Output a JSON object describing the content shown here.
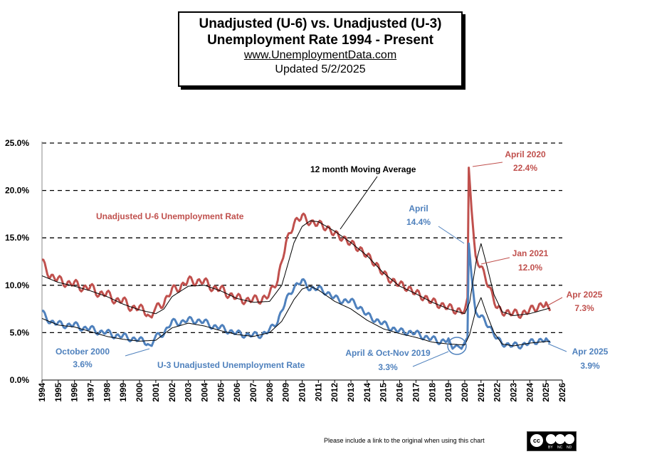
{
  "title": {
    "line1": "Unadjusted (U-6) vs. Unadjusted (U-3)",
    "line2": "Unemployment Rate 1994 - Present",
    "url": "www.UnemploymentData.com",
    "updated": "Updated 5/2/2025"
  },
  "footer": "Please include a link to the original when using this chart",
  "cc_badge": {
    "cc": "cc",
    "labels": [
      "BY",
      "NC",
      "ND"
    ]
  },
  "colors": {
    "u6": "#c0504d",
    "u3": "#4f81bd",
    "ma": "#000000",
    "grid": "#000000"
  },
  "annotations": {
    "u6_label": "Unadjusted U-6 Unemployment Rate",
    "u3_label": "U-3  Unadjusted Unemployment Rate",
    "ma_label": "12 month Moving Average",
    "u6_peak": [
      "April 2020",
      "22.4%"
    ],
    "u6_jan21": [
      "Jan 2021",
      "12.0%"
    ],
    "u6_apr25": [
      "Apr 2025",
      "7.3%"
    ],
    "u3_peak": [
      "April",
      "14.4%"
    ],
    "u3_oct2000": [
      "October 2000",
      "3.6%"
    ],
    "u3_low2019": [
      "April & Oct-Nov  2019",
      "3.3%"
    ],
    "u3_apr25": [
      "Apr 2025",
      "3.9%"
    ]
  },
  "chart_data": {
    "type": "line",
    "x_range": [
      1994,
      2026
    ],
    "ylim": [
      0,
      25
    ],
    "y_ticks": [
      "0.0%",
      "5.0%",
      "10.0%",
      "15.0%",
      "20.0%",
      "25.0%"
    ],
    "x_ticks": [
      "1994",
      "1995",
      "1996",
      "1997",
      "1998",
      "1999",
      "2000",
      "2001",
      "2002",
      "2003",
      "2004",
      "2005",
      "2006",
      "2007",
      "2008",
      "2009",
      "2010",
      "2011",
      "2012",
      "2013",
      "2014",
      "2015",
      "2016",
      "2017",
      "2018",
      "2019",
      "2020",
      "2021",
      "2022",
      "2023",
      "2024",
      "2025",
      "2026"
    ],
    "grid": "horizontal dashed",
    "series": [
      {
        "name": "Unadjusted U-6 Unemployment Rate",
        "points": [
          [
            1994.0,
            12.7
          ],
          [
            1994.5,
            10.8
          ],
          [
            1995.0,
            10.8
          ],
          [
            1995.5,
            10.0
          ],
          [
            1996.0,
            10.4
          ],
          [
            1996.5,
            9.5
          ],
          [
            1997.0,
            10.0
          ],
          [
            1997.5,
            8.9
          ],
          [
            1998.0,
            9.3
          ],
          [
            1998.5,
            8.2
          ],
          [
            1999.0,
            8.6
          ],
          [
            1999.5,
            7.4
          ],
          [
            2000.0,
            7.8
          ],
          [
            2000.5,
            6.9
          ],
          [
            2000.75,
            6.6
          ],
          [
            2001.0,
            7.7
          ],
          [
            2001.5,
            8.0
          ],
          [
            2002.0,
            9.7
          ],
          [
            2002.5,
            9.6
          ],
          [
            2003.0,
            10.7
          ],
          [
            2003.5,
            10.2
          ],
          [
            2004.0,
            10.6
          ],
          [
            2004.5,
            9.5
          ],
          [
            2005.0,
            9.8
          ],
          [
            2005.5,
            8.8
          ],
          [
            2006.0,
            8.9
          ],
          [
            2006.5,
            8.2
          ],
          [
            2007.0,
            8.7
          ],
          [
            2007.5,
            8.3
          ],
          [
            2008.0,
            9.2
          ],
          [
            2008.5,
            10.5
          ],
          [
            2009.0,
            14.5
          ],
          [
            2009.5,
            16.5
          ],
          [
            2010.0,
            17.4
          ],
          [
            2010.5,
            16.5
          ],
          [
            2011.0,
            16.6
          ],
          [
            2011.5,
            16.0
          ],
          [
            2012.0,
            15.5
          ],
          [
            2012.5,
            14.9
          ],
          [
            2013.0,
            14.5
          ],
          [
            2013.5,
            13.8
          ],
          [
            2014.0,
            13.2
          ],
          [
            2014.5,
            12.2
          ],
          [
            2015.0,
            11.3
          ],
          [
            2015.5,
            10.4
          ],
          [
            2016.0,
            10.2
          ],
          [
            2016.5,
            9.6
          ],
          [
            2017.0,
            9.3
          ],
          [
            2017.5,
            8.6
          ],
          [
            2018.0,
            8.4
          ],
          [
            2018.5,
            7.8
          ],
          [
            2019.0,
            7.8
          ],
          [
            2019.5,
            7.2
          ],
          [
            2020.0,
            7.4
          ],
          [
            2020.17,
            8.7
          ],
          [
            2020.25,
            22.4
          ],
          [
            2020.42,
            18.0
          ],
          [
            2020.67,
            12.8
          ],
          [
            2021.0,
            12.0
          ],
          [
            2021.5,
            9.8
          ],
          [
            2022.0,
            7.6
          ],
          [
            2022.5,
            7.0
          ],
          [
            2023.0,
            7.2
          ],
          [
            2023.5,
            6.8
          ],
          [
            2024.0,
            7.5
          ],
          [
            2024.5,
            7.6
          ],
          [
            2025.0,
            8.2
          ],
          [
            2025.25,
            7.3
          ]
        ]
      },
      {
        "name": "U-3  Unadjusted Unemployment Rate",
        "points": [
          [
            1994.0,
            7.3
          ],
          [
            1994.5,
            6.0
          ],
          [
            1995.0,
            6.1
          ],
          [
            1995.5,
            5.6
          ],
          [
            1996.0,
            6.0
          ],
          [
            1996.5,
            5.3
          ],
          [
            1997.0,
            5.6
          ],
          [
            1997.5,
            4.9
          ],
          [
            1998.0,
            5.2
          ],
          [
            1998.5,
            4.5
          ],
          [
            1999.0,
            4.8
          ],
          [
            1999.5,
            4.2
          ],
          [
            2000.0,
            4.4
          ],
          [
            2000.5,
            3.8
          ],
          [
            2000.75,
            3.6
          ],
          [
            2001.0,
            4.7
          ],
          [
            2001.5,
            4.8
          ],
          [
            2002.0,
            6.3
          ],
          [
            2002.5,
            5.9
          ],
          [
            2003.0,
            6.5
          ],
          [
            2003.5,
            6.1
          ],
          [
            2004.0,
            6.3
          ],
          [
            2004.5,
            5.5
          ],
          [
            2005.0,
            5.7
          ],
          [
            2005.5,
            5.0
          ],
          [
            2006.0,
            5.1
          ],
          [
            2006.5,
            4.6
          ],
          [
            2007.0,
            4.9
          ],
          [
            2007.5,
            4.6
          ],
          [
            2008.0,
            5.4
          ],
          [
            2008.5,
            6.1
          ],
          [
            2009.0,
            8.5
          ],
          [
            2009.5,
            9.7
          ],
          [
            2010.0,
            10.6
          ],
          [
            2010.5,
            9.5
          ],
          [
            2011.0,
            9.8
          ],
          [
            2011.5,
            9.1
          ],
          [
            2012.0,
            8.8
          ],
          [
            2012.5,
            8.2
          ],
          [
            2013.0,
            8.5
          ],
          [
            2013.5,
            7.6
          ],
          [
            2014.0,
            7.0
          ],
          [
            2014.5,
            6.2
          ],
          [
            2015.0,
            6.1
          ],
          [
            2015.5,
            5.3
          ],
          [
            2016.0,
            5.3
          ],
          [
            2016.5,
            4.9
          ],
          [
            2017.0,
            5.1
          ],
          [
            2017.5,
            4.4
          ],
          [
            2018.0,
            4.5
          ],
          [
            2018.5,
            3.9
          ],
          [
            2019.0,
            4.4
          ],
          [
            2019.25,
            3.3
          ],
          [
            2019.5,
            3.7
          ],
          [
            2019.8,
            3.3
          ],
          [
            2020.0,
            4.0
          ],
          [
            2020.17,
            4.5
          ],
          [
            2020.25,
            14.4
          ],
          [
            2020.42,
            11.0
          ],
          [
            2020.67,
            7.0
          ],
          [
            2021.0,
            6.8
          ],
          [
            2021.5,
            5.6
          ],
          [
            2022.0,
            4.4
          ],
          [
            2022.5,
            3.6
          ],
          [
            2023.0,
            3.8
          ],
          [
            2023.5,
            3.5
          ],
          [
            2024.0,
            4.1
          ],
          [
            2024.5,
            4.0
          ],
          [
            2025.0,
            4.4
          ],
          [
            2025.25,
            3.9
          ]
        ]
      },
      {
        "name": "12 month Moving Average",
        "points": [
          [
            1994.0,
            11.0
          ],
          [
            1995.0,
            10.3
          ],
          [
            1996.0,
            9.9
          ],
          [
            1997.0,
            9.4
          ],
          [
            1998.0,
            8.8
          ],
          [
            1999.0,
            8.0
          ],
          [
            2000.0,
            7.4
          ],
          [
            2001.0,
            7.0
          ],
          [
            2001.5,
            7.5
          ],
          [
            2002.0,
            8.8
          ],
          [
            2003.0,
            9.9
          ],
          [
            2004.0,
            10.0
          ],
          [
            2005.0,
            9.4
          ],
          [
            2006.0,
            8.6
          ],
          [
            2007.0,
            8.2
          ],
          [
            2008.0,
            8.3
          ],
          [
            2008.75,
            10.0
          ],
          [
            2009.5,
            14.5
          ],
          [
            2010.0,
            16.2
          ],
          [
            2010.5,
            16.8
          ],
          [
            2011.0,
            16.7
          ],
          [
            2012.0,
            15.7
          ],
          [
            2013.0,
            14.5
          ],
          [
            2014.0,
            13.1
          ],
          [
            2015.0,
            11.3
          ],
          [
            2016.0,
            9.9
          ],
          [
            2017.0,
            9.1
          ],
          [
            2018.0,
            8.2
          ],
          [
            2019.0,
            7.5
          ],
          [
            2020.0,
            7.0
          ],
          [
            2020.3,
            8.2
          ],
          [
            2020.7,
            12.5
          ],
          [
            2021.0,
            14.4
          ],
          [
            2021.3,
            12.5
          ],
          [
            2021.8,
            9.0
          ],
          [
            2022.3,
            7.2
          ],
          [
            2023.0,
            6.8
          ],
          [
            2024.0,
            7.0
          ],
          [
            2025.25,
            7.6
          ]
        ]
      },
      {
        "name": "",
        "points": [
          [
            1994.0,
            6.5
          ],
          [
            1995.0,
            5.8
          ],
          [
            1996.0,
            5.6
          ],
          [
            1997.0,
            5.1
          ],
          [
            1998.0,
            4.6
          ],
          [
            1999.0,
            4.3
          ],
          [
            2000.0,
            4.1
          ],
          [
            2001.0,
            4.2
          ],
          [
            2002.0,
            5.5
          ],
          [
            2003.0,
            6.0
          ],
          [
            2004.0,
            5.7
          ],
          [
            2005.0,
            5.2
          ],
          [
            2006.0,
            4.8
          ],
          [
            2007.0,
            4.6
          ],
          [
            2008.0,
            5.0
          ],
          [
            2008.75,
            6.2
          ],
          [
            2009.5,
            8.5
          ],
          [
            2010.0,
            9.6
          ],
          [
            2010.5,
            9.9
          ],
          [
            2011.0,
            9.5
          ],
          [
            2012.0,
            8.3
          ],
          [
            2013.0,
            7.5
          ],
          [
            2014.0,
            6.3
          ],
          [
            2015.0,
            5.4
          ],
          [
            2016.0,
            4.9
          ],
          [
            2017.0,
            4.5
          ],
          [
            2018.0,
            4.0
          ],
          [
            2019.0,
            3.8
          ],
          [
            2020.0,
            3.7
          ],
          [
            2020.3,
            4.8
          ],
          [
            2020.7,
            7.5
          ],
          [
            2021.0,
            8.7
          ],
          [
            2021.3,
            7.2
          ],
          [
            2021.8,
            5.0
          ],
          [
            2022.3,
            3.8
          ],
          [
            2023.0,
            3.6
          ],
          [
            2024.0,
            3.9
          ],
          [
            2025.25,
            4.1
          ]
        ]
      }
    ]
  }
}
